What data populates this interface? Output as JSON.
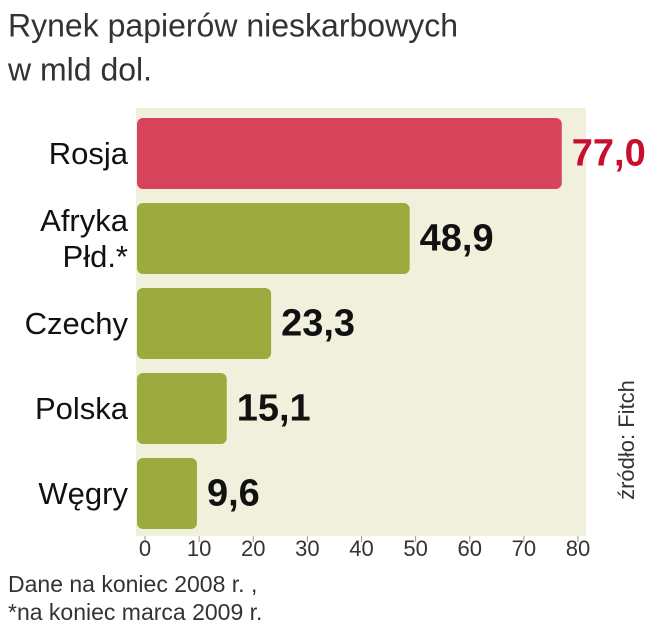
{
  "chart_data": {
    "type": "bar",
    "orientation": "horizontal",
    "title": "Rynek papierów nieskarbowych",
    "subtitle": "w mld dol.",
    "categories": [
      "Rosja",
      "Afryka Płd.*",
      "Czechy",
      "Polska",
      "Węgry"
    ],
    "values": [
      77.0,
      48.9,
      23.3,
      15.1,
      9.6
    ],
    "value_labels": [
      "77,0",
      "48,9",
      "23,3",
      "15,1",
      "9,6"
    ],
    "colors": [
      "#d8435c",
      "#9cab3d",
      "#9cab3d",
      "#9cab3d",
      "#9cab3d"
    ],
    "label_colors": [
      "#c8102e",
      "#111111",
      "#111111",
      "#111111",
      "#111111"
    ],
    "xlim": [
      0,
      80
    ],
    "xticks": [
      0,
      10,
      20,
      30,
      40,
      50,
      60,
      70,
      80
    ],
    "source": "źródło: Fitch",
    "notes": [
      "Dane na koniec 2008 r. ,",
      "*na koniec marca 2009 r."
    ]
  }
}
